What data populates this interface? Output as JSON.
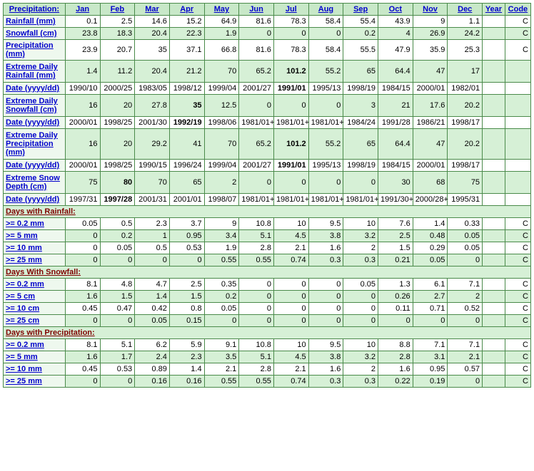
{
  "columns": [
    "Precipitation:",
    "Jan",
    "Feb",
    "Mar",
    "Apr",
    "May",
    "Jun",
    "Jul",
    "Aug",
    "Sep",
    "Oct",
    "Nov",
    "Dec",
    "Year",
    "Code"
  ],
  "colors": {
    "header_bg": "#c8e8c8",
    "odd_bg": "#ffffff",
    "even_bg": "#d6f0d6",
    "label_bg": "#eef8ee",
    "border": "#4a8a4a",
    "link": "#0000cc",
    "section_text": "#800000"
  },
  "rows": [
    {
      "kind": "data",
      "parity": "odd",
      "label": "Rainfall (mm)",
      "cells": [
        "0.1",
        "2.5",
        "14.6",
        "15.2",
        "64.9",
        "81.6",
        "78.3",
        "58.4",
        "55.4",
        "43.9",
        "9",
        "1.1",
        "",
        "C"
      ],
      "bold": []
    },
    {
      "kind": "data",
      "parity": "even",
      "label": "Snowfall (cm)",
      "cells": [
        "23.8",
        "18.3",
        "20.4",
        "22.3",
        "1.9",
        "0",
        "0",
        "0",
        "0.2",
        "4",
        "26.9",
        "24.2",
        "",
        "C"
      ],
      "bold": []
    },
    {
      "kind": "data",
      "parity": "odd",
      "label": "Precipitation (mm)",
      "cells": [
        "23.9",
        "20.7",
        "35",
        "37.1",
        "66.8",
        "81.6",
        "78.3",
        "58.4",
        "55.5",
        "47.9",
        "35.9",
        "25.3",
        "",
        "C"
      ],
      "bold": []
    },
    {
      "kind": "data",
      "parity": "even",
      "tall": true,
      "label": "Extreme Daily Rainfall (mm)",
      "cells": [
        "1.4",
        "11.2",
        "20.4",
        "21.2",
        "70",
        "65.2",
        "101.2",
        "55.2",
        "65",
        "64.4",
        "47",
        "17",
        "",
        ""
      ],
      "bold": [
        6
      ]
    },
    {
      "kind": "data",
      "parity": "odd",
      "label": "Date (yyyy/dd)",
      "cells": [
        "1990/10",
        "2000/25",
        "1983/05",
        "1998/12",
        "1999/04",
        "2001/27",
        "1991/01",
        "1995/13",
        "1998/19",
        "1984/15",
        "2000/01",
        "1982/01",
        "",
        ""
      ],
      "bold": [
        6
      ]
    },
    {
      "kind": "data",
      "parity": "even",
      "tall": true,
      "label": "Extreme Daily Snowfall (cm)",
      "cells": [
        "16",
        "20",
        "27.8",
        "35",
        "12.5",
        "0",
        "0",
        "0",
        "3",
        "21",
        "17.6",
        "20.2",
        "",
        ""
      ],
      "bold": [
        3
      ]
    },
    {
      "kind": "data",
      "parity": "odd",
      "label": "Date (yyyy/dd)",
      "cells": [
        "2000/01",
        "1998/25",
        "2001/30",
        "1992/19",
        "1998/06",
        "1981/01+",
        "1981/01+",
        "1981/01+",
        "1984/24",
        "1991/28",
        "1986/21",
        "1998/17",
        "",
        ""
      ],
      "bold": [
        3
      ]
    },
    {
      "kind": "data",
      "parity": "even",
      "tall": true,
      "label": "Extreme Daily Precipitation (mm)",
      "cells": [
        "16",
        "20",
        "29.2",
        "41",
        "70",
        "65.2",
        "101.2",
        "55.2",
        "65",
        "64.4",
        "47",
        "20.2",
        "",
        ""
      ],
      "bold": [
        6
      ]
    },
    {
      "kind": "data",
      "parity": "odd",
      "label": "Date (yyyy/dd)",
      "cells": [
        "2000/01",
        "1998/25",
        "1990/15",
        "1996/24",
        "1999/04",
        "2001/27",
        "1991/01",
        "1995/13",
        "1998/19",
        "1984/15",
        "2000/01",
        "1998/17",
        "",
        ""
      ],
      "bold": [
        6
      ]
    },
    {
      "kind": "data",
      "parity": "even",
      "tall": true,
      "label": "Extreme Snow Depth (cm)",
      "cells": [
        "75",
        "80",
        "70",
        "65",
        "2",
        "0",
        "0",
        "0",
        "0",
        "30",
        "68",
        "75",
        "",
        ""
      ],
      "bold": [
        1
      ]
    },
    {
      "kind": "data",
      "parity": "odd",
      "label": "Date (yyyy/dd)",
      "cells": [
        "1997/31",
        "1997/28",
        "2001/31",
        "2001/01",
        "1998/07",
        "1981/01+",
        "1981/01+",
        "1981/01+",
        "1981/01+",
        "1991/30+",
        "2000/28+",
        "1995/31",
        "",
        ""
      ],
      "bold": [
        1
      ]
    },
    {
      "kind": "section",
      "label": "Days with Rainfall:"
    },
    {
      "kind": "data",
      "parity": "odd",
      "label": ">= 0.2 mm",
      "cells": [
        "0.05",
        "0.5",
        "2.3",
        "3.7",
        "9",
        "10.8",
        "10",
        "9.5",
        "10",
        "7.6",
        "1.4",
        "0.33",
        "",
        "C"
      ],
      "bold": []
    },
    {
      "kind": "data",
      "parity": "even",
      "label": ">= 5 mm",
      "cells": [
        "0",
        "0.2",
        "1",
        "0.95",
        "3.4",
        "5.1",
        "4.5",
        "3.8",
        "3.2",
        "2.5",
        "0.48",
        "0.05",
        "",
        "C"
      ],
      "bold": []
    },
    {
      "kind": "data",
      "parity": "odd",
      "label": ">= 10 mm",
      "cells": [
        "0",
        "0.05",
        "0.5",
        "0.53",
        "1.9",
        "2.8",
        "2.1",
        "1.6",
        "2",
        "1.5",
        "0.29",
        "0.05",
        "",
        "C"
      ],
      "bold": []
    },
    {
      "kind": "data",
      "parity": "even",
      "label": ">= 25 mm",
      "cells": [
        "0",
        "0",
        "0",
        "0",
        "0.55",
        "0.55",
        "0.74",
        "0.3",
        "0.3",
        "0.21",
        "0.05",
        "0",
        "",
        "C"
      ],
      "bold": []
    },
    {
      "kind": "section",
      "label": "Days With Snowfall:"
    },
    {
      "kind": "data",
      "parity": "odd",
      "label": ">= 0.2 mm",
      "cells": [
        "8.1",
        "4.8",
        "4.7",
        "2.5",
        "0.35",
        "0",
        "0",
        "0",
        "0.05",
        "1.3",
        "6.1",
        "7.1",
        "",
        "C"
      ],
      "bold": []
    },
    {
      "kind": "data",
      "parity": "even",
      "label": ">= 5 cm",
      "cells": [
        "1.6",
        "1.5",
        "1.4",
        "1.5",
        "0.2",
        "0",
        "0",
        "0",
        "0",
        "0.26",
        "2.7",
        "2",
        "",
        "C"
      ],
      "bold": []
    },
    {
      "kind": "data",
      "parity": "odd",
      "label": ">= 10 cm",
      "cells": [
        "0.45",
        "0.47",
        "0.42",
        "0.8",
        "0.05",
        "0",
        "0",
        "0",
        "0",
        "0.11",
        "0.71",
        "0.52",
        "",
        "C"
      ],
      "bold": []
    },
    {
      "kind": "data",
      "parity": "even",
      "label": ">= 25 cm",
      "cells": [
        "0",
        "0",
        "0.05",
        "0.15",
        "0",
        "0",
        "0",
        "0",
        "0",
        "0",
        "0",
        "0",
        "",
        "C"
      ],
      "bold": []
    },
    {
      "kind": "section",
      "label": "Days with Precipitation:"
    },
    {
      "kind": "data",
      "parity": "odd",
      "label": ">= 0.2 mm",
      "cells": [
        "8.1",
        "5.1",
        "6.2",
        "5.9",
        "9.1",
        "10.8",
        "10",
        "9.5",
        "10",
        "8.8",
        "7.1",
        "7.1",
        "",
        "C"
      ],
      "bold": []
    },
    {
      "kind": "data",
      "parity": "even",
      "label": ">= 5 mm",
      "cells": [
        "1.6",
        "1.7",
        "2.4",
        "2.3",
        "3.5",
        "5.1",
        "4.5",
        "3.8",
        "3.2",
        "2.8",
        "3.1",
        "2.1",
        "",
        "C"
      ],
      "bold": []
    },
    {
      "kind": "data",
      "parity": "odd",
      "label": ">= 10 mm",
      "cells": [
        "0.45",
        "0.53",
        "0.89",
        "1.4",
        "2.1",
        "2.8",
        "2.1",
        "1.6",
        "2",
        "1.6",
        "0.95",
        "0.57",
        "",
        "C"
      ],
      "bold": []
    },
    {
      "kind": "data",
      "parity": "even",
      "label": ">= 25 mm",
      "cells": [
        "0",
        "0",
        "0.16",
        "0.16",
        "0.55",
        "0.55",
        "0.74",
        "0.3",
        "0.3",
        "0.22",
        "0.19",
        "0",
        "",
        "C"
      ],
      "bold": []
    }
  ]
}
